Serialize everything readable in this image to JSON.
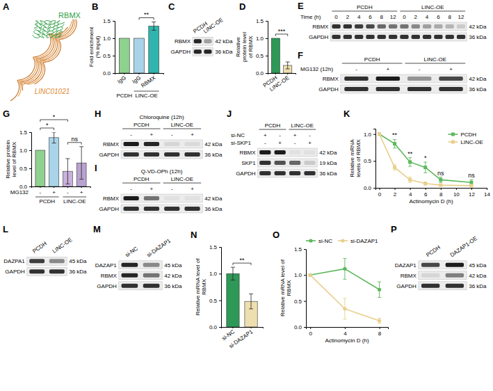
{
  "chart_data": [
    {
      "type": "bar",
      "categories": [
        "IgG",
        "IgG",
        "RBMX"
      ],
      "values": [
        1.0,
        1.0,
        1.35
      ],
      "errors": [
        0,
        0,
        0.12
      ],
      "colors": [
        "#8fd18f",
        "#a9d3e8",
        "#2fb5ad"
      ],
      "ylabel": "Fold enrichment (% input)",
      "ylim": [
        0,
        1.5
      ],
      "yticks": [
        {
          "value": 0,
          "label": "0.0"
        },
        0.5,
        {
          "value": 1,
          "label": "1.0"
        },
        1.5
      ],
      "groups": [
        {
          "name": "PCDH",
          "categories": [
            0
          ]
        },
        {
          "name": "LINC-OE",
          "categories": [
            1,
            2
          ]
        }
      ],
      "annotations": [
        {
          "text": "**",
          "from": 1,
          "to": 2
        }
      ]
    },
    {
      "type": "bar",
      "categories": [
        "PCDH",
        "LINC-OE"
      ],
      "values": [
        1.0,
        0.22
      ],
      "errors": [
        0,
        0.1
      ],
      "colors": [
        "#2e9957",
        "#eedfb0"
      ],
      "ylabel": "Relative protein level of RBMX",
      "ylim": [
        0,
        1.5
      ],
      "yticks": [
        {
          "value": 0,
          "label": "0.0"
        },
        0.5,
        {
          "value": 1,
          "label": "1.0"
        },
        1.5
      ],
      "annotations": [
        {
          "text": "***",
          "from": 0,
          "to": 1
        }
      ]
    },
    {
      "type": "bar",
      "categories": [
        "-",
        "+",
        "-",
        "+"
      ],
      "values": [
        1.0,
        1.35,
        0.42,
        0.65
      ],
      "errors": [
        0,
        0.15,
        0.35,
        0.45
      ],
      "colors": [
        "#8fd18f",
        "#a9d3e8",
        "#c9b0dd",
        "#b9a3cf"
      ],
      "xlabel": "MG132",
      "ylabel": "Relative protein level of RBMX",
      "ylim": [
        0,
        1.5
      ],
      "yticks": [
        {
          "value": 0,
          "label": "0.0"
        },
        0.5,
        {
          "value": 1,
          "label": "1.0"
        },
        1.5
      ],
      "groups": [
        {
          "name": "PCDH",
          "categories": [
            0,
            1
          ]
        },
        {
          "name": "LINC-OE",
          "categories": [
            2,
            3
          ]
        }
      ],
      "annotations": [
        {
          "text": "*",
          "from": 0,
          "to": 1
        },
        {
          "text": "*",
          "from": 0,
          "to": 2
        },
        {
          "text": "ns",
          "from": 2,
          "to": 3
        }
      ]
    },
    {
      "type": "line",
      "x": [
        0,
        2,
        4,
        6,
        8,
        12
      ],
      "series": [
        {
          "name": "PCDH",
          "color": "#5cb85c",
          "values": [
            1.0,
            0.82,
            0.48,
            0.38,
            0.15,
            0.1
          ],
          "errors": [
            0,
            0.08,
            0.08,
            0.1,
            0.05,
            0.05
          ]
        },
        {
          "name": "LINC-OE",
          "color": "#e9cf8c",
          "values": [
            1.0,
            0.38,
            0.15,
            0.08,
            0.05,
            0.04
          ],
          "errors": [
            0,
            0.05,
            0.05,
            0.03,
            0.02,
            0.02
          ]
        }
      ],
      "marker": "square",
      "xlabel": "Actinomycin D (h)",
      "ylabel": "Relative mRNA levels of RBMX",
      "xlim": [
        -0.5,
        14
      ],
      "xticks": [
        0,
        2,
        4,
        6,
        8,
        10,
        12,
        14
      ],
      "ylim": [
        0,
        1.1
      ],
      "yticks": [
        {
          "value": 0,
          "label": "0.0"
        },
        0.5,
        {
          "value": 1,
          "label": "1.0"
        }
      ],
      "legend": "upper right",
      "annotations": [
        {
          "text": "**",
          "x": 2
        },
        {
          "text": "**",
          "x": 4
        },
        {
          "text": "*",
          "x": 6
        },
        {
          "text": "ns",
          "x": 8
        },
        {
          "text": "ns",
          "x": 12
        }
      ]
    },
    {
      "type": "bar",
      "categories": [
        "si-NC",
        "si-DAZAP1"
      ],
      "values": [
        1.0,
        0.48
      ],
      "errors": [
        0.12,
        0.14
      ],
      "colors": [
        "#2e9957",
        "#eedfb0"
      ],
      "ylabel": "Relative mRNA level of RBMX",
      "ylim": [
        0,
        1.5
      ],
      "yticks": [
        {
          "value": 0,
          "label": "0.0"
        },
        0.5,
        {
          "value": 1,
          "label": "1.0"
        },
        1.5
      ],
      "annotations": [
        {
          "text": "**",
          "from": 0,
          "to": 1
        }
      ]
    },
    {
      "type": "line",
      "x": [
        0,
        4,
        8
      ],
      "series": [
        {
          "name": "si-NC",
          "color": "#5cb85c",
          "values": [
            1.0,
            1.12,
            0.72
          ],
          "errors": [
            0,
            0.2,
            0.15
          ]
        },
        {
          "name": "si-DAZAP1",
          "color": "#e9cf8c",
          "values": [
            1.0,
            0.35,
            0.12
          ],
          "errors": [
            0,
            0.2,
            0.05
          ]
        }
      ],
      "marker": "circle",
      "xlabel": "Actinomycin D (h)",
      "ylabel": "Relative mRNA level of RBMX",
      "xlim": [
        -0.5,
        9
      ],
      "xticks": [
        0,
        4,
        8
      ],
      "ylim": [
        0,
        1.5
      ],
      "yticks": [
        {
          "value": 0,
          "label": "0.0"
        },
        0.5,
        {
          "value": 1,
          "label": "1.0"
        },
        1.5
      ],
      "legend": "top"
    }
  ],
  "figure": {
    "panel_letters": [
      "A",
      "B",
      "C",
      "D",
      "E",
      "F",
      "G",
      "H",
      "I",
      "J",
      "K",
      "L",
      "M",
      "N",
      "O",
      "P"
    ],
    "structure": {
      "protein": "RBMX",
      "rna": "LINC01021"
    },
    "blots": [
      {
        "columns": [
          "PCDH",
          "LINC-OE"
        ],
        "rows": [
          {
            "label": "RBMX",
            "size": "42 kDa",
            "bands": [
              0.9,
              0.35
            ]
          },
          {
            "label": "GAPDH",
            "size": "36 kDa",
            "bands": [
              0.9,
              0.9
            ]
          }
        ]
      },
      {
        "groups": [
          "PCDH",
          "LINC-OE"
        ],
        "treatments": [
          {
            "label": "Time (h)",
            "cells": [
              "0",
              "2",
              "4",
              "6",
              "8",
              "12",
              "0",
              "2",
              "4",
              "6",
              "8",
              "12"
            ]
          }
        ],
        "rows": [
          {
            "label": "RBMX",
            "size": "42 kDa",
            "bands": [
              0.85,
              0.85,
              0.8,
              0.75,
              0.6,
              0.55,
              0.55,
              0.45,
              0.35,
              0.3,
              0.25,
              0.15
            ]
          },
          {
            "label": "GAPDH",
            "size": "36 kDa",
            "bands": [
              0.85,
              0.85,
              0.85,
              0.85,
              0.85,
              0.85,
              0.85,
              0.85,
              0.85,
              0.85,
              0.85,
              0.85
            ]
          }
        ]
      },
      {
        "groups": [
          "PCDH",
          "LINC-OE"
        ],
        "treatments": [
          {
            "label": "MG132 (12h)",
            "cells": [
              "-",
              "+",
              "-",
              "+"
            ]
          }
        ],
        "rows": [
          {
            "label": "RBMX",
            "size": "42 kDa",
            "bands": [
              0.85,
              0.95,
              0.4,
              0.75
            ]
          },
          {
            "label": "GAPDH",
            "size": "36 kDa",
            "bands": [
              0.85,
              0.85,
              0.85,
              0.85
            ]
          }
        ]
      },
      {
        "groups": [
          "PCDH",
          "LINC-OE"
        ],
        "treatments": [
          {
            "label": "Chloroquine (12h)",
            "cells": [
              "-",
              "+",
              "-",
              "+"
            ]
          }
        ],
        "rows": [
          {
            "label": "RBMX",
            "size": "42 kDa",
            "bands": [
              0.95,
              0.9,
              0.1,
              0.08
            ]
          },
          {
            "label": "GAPDH",
            "size": "36 kDa",
            "bands": [
              0.85,
              0.85,
              0.85,
              0.85
            ]
          }
        ]
      },
      {
        "groups": [
          "PCDH",
          "LINC-OE"
        ],
        "treatments": [
          {
            "label": "Q-VD-OPh (12h)",
            "cells": [
              "-",
              "+",
              "-",
              "+"
            ]
          }
        ],
        "rows": [
          {
            "label": "RBMX",
            "size": "42 kDa",
            "bands": [
              0.95,
              0.55,
              0.05,
              0.05
            ]
          },
          {
            "label": "GAPDH",
            "size": "36 kDa",
            "bands": [
              0.85,
              0.85,
              0.85,
              0.85
            ]
          }
        ]
      },
      {
        "groups": [
          "PCDH",
          "LINC-OE"
        ],
        "treatments": [
          {
            "label": "si-NC",
            "cells": [
              "+",
              "-",
              "+",
              "-"
            ]
          },
          {
            "label": "si-SKP1",
            "cells": [
              "-",
              "+",
              "-",
              "+"
            ]
          }
        ],
        "rows": [
          {
            "label": "RBMX",
            "size": "42 kDa",
            "bands": [
              0.95,
              0.95,
              0.05,
              0.05
            ]
          },
          {
            "label": "SKP1",
            "size": "19 kDa",
            "bands": [
              0.85,
              0.7,
              0.6,
              0.15
            ]
          },
          {
            "label": "GAPDH",
            "size": "36 kDa",
            "bands": [
              0.85,
              0.85,
              0.85,
              0.85
            ]
          }
        ]
      },
      {
        "columns": [
          "PCDH",
          "LINC-OE"
        ],
        "rows": [
          {
            "label": "DAZPA1",
            "size": "45 kDa",
            "bands": [
              0.8,
              0.45
            ]
          },
          {
            "label": "GAPDH",
            "size": "36 kDa",
            "bands": [
              0.85,
              0.85
            ]
          }
        ]
      },
      {
        "columns": [
          "si-NC",
          "si-DAZAP1"
        ],
        "rows": [
          {
            "label": "DAZAP1",
            "size": "45 kDa",
            "bands": [
              0.9,
              0.45
            ]
          },
          {
            "label": "RBMX",
            "size": "42 kDa",
            "bands": [
              0.9,
              0.55
            ]
          },
          {
            "label": "GAPDH",
            "size": "36 kDa",
            "bands": [
              0.85,
              0.85
            ]
          }
        ]
      },
      {
        "columns": [
          "PCDH",
          "DAZAP1-OE"
        ],
        "rows": [
          {
            "label": "DAZAP1",
            "size": "45 kDa",
            "bands": [
              0.75,
              0.95
            ]
          },
          {
            "label": "RBMX",
            "size": "42 kDa",
            "bands": [
              0.1,
              0.5
            ]
          },
          {
            "label": "GAPDH",
            "size": "36 kDa",
            "bands": [
              0.85,
              0.85
            ]
          }
        ]
      }
    ]
  }
}
